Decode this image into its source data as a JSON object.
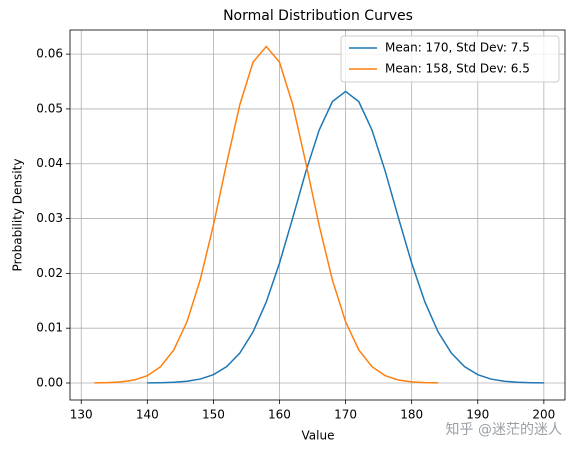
{
  "chart_data": {
    "type": "line",
    "title": "Normal Distribution Curves",
    "x_label": "Value",
    "y_label": "Probability Density",
    "xlim": [
      128.3,
      203.2
    ],
    "ylim": [
      -0.0031,
      0.0644
    ],
    "xticks": [
      130,
      140,
      150,
      160,
      170,
      180,
      190,
      200
    ],
    "yticks": [
      {
        "value": 0,
        "label": "0.00"
      },
      {
        "value": 0.01,
        "label": "0.01"
      },
      {
        "value": 0.02,
        "label": "0.02"
      },
      {
        "value": 0.03,
        "label": "0.03"
      },
      {
        "value": 0.04,
        "label": "0.04"
      },
      {
        "value": 0.05,
        "label": "0.05"
      },
      {
        "value": 0.06,
        "label": "0.06"
      }
    ],
    "grid": true,
    "legend": "upper right",
    "series": [
      {
        "name": "Mean: 170, Std Dev: 7.5",
        "color": "#1f77b4",
        "x": [
          140,
          142,
          144,
          146,
          148,
          150,
          152,
          154,
          156,
          158,
          160,
          162,
          164,
          166,
          168,
          170,
          172,
          174,
          176,
          178,
          180,
          182,
          184,
          186,
          188,
          190,
          192,
          194,
          196,
          198,
          200
        ],
        "values": [
          2e-05,
          5e-05,
          0.00013,
          0.00032,
          0.00072,
          0.00152,
          0.00298,
          0.00546,
          0.00932,
          0.01479,
          0.02187,
          0.03011,
          0.03862,
          0.04614,
          0.05133,
          0.05319,
          0.05133,
          0.04614,
          0.03862,
          0.03011,
          0.02187,
          0.01479,
          0.00932,
          0.00546,
          0.00298,
          0.00152,
          0.00072,
          0.00032,
          0.00013,
          5e-05,
          2e-05
        ]
      },
      {
        "name": "Mean: 158, Std Dev: 6.5",
        "color": "#ff7f0e",
        "x": [
          132,
          134,
          136,
          138,
          140,
          142,
          144,
          146,
          148,
          150,
          152,
          154,
          156,
          158,
          160,
          162,
          164,
          166,
          168,
          170,
          172,
          174,
          176,
          178,
          180,
          182,
          184
        ],
        "values": [
          2e-05,
          7e-05,
          0.0002,
          0.00054,
          0.00133,
          0.00297,
          0.00603,
          0.01117,
          0.0188,
          0.02878,
          0.04009,
          0.05079,
          0.05854,
          0.06138,
          0.05854,
          0.05079,
          0.04009,
          0.02878,
          0.0188,
          0.01117,
          0.00603,
          0.00297,
          0.00133,
          0.00054,
          0.0002,
          7e-05,
          2e-05
        ]
      }
    ],
    "watermark": "知乎 @迷茫的迷人"
  }
}
